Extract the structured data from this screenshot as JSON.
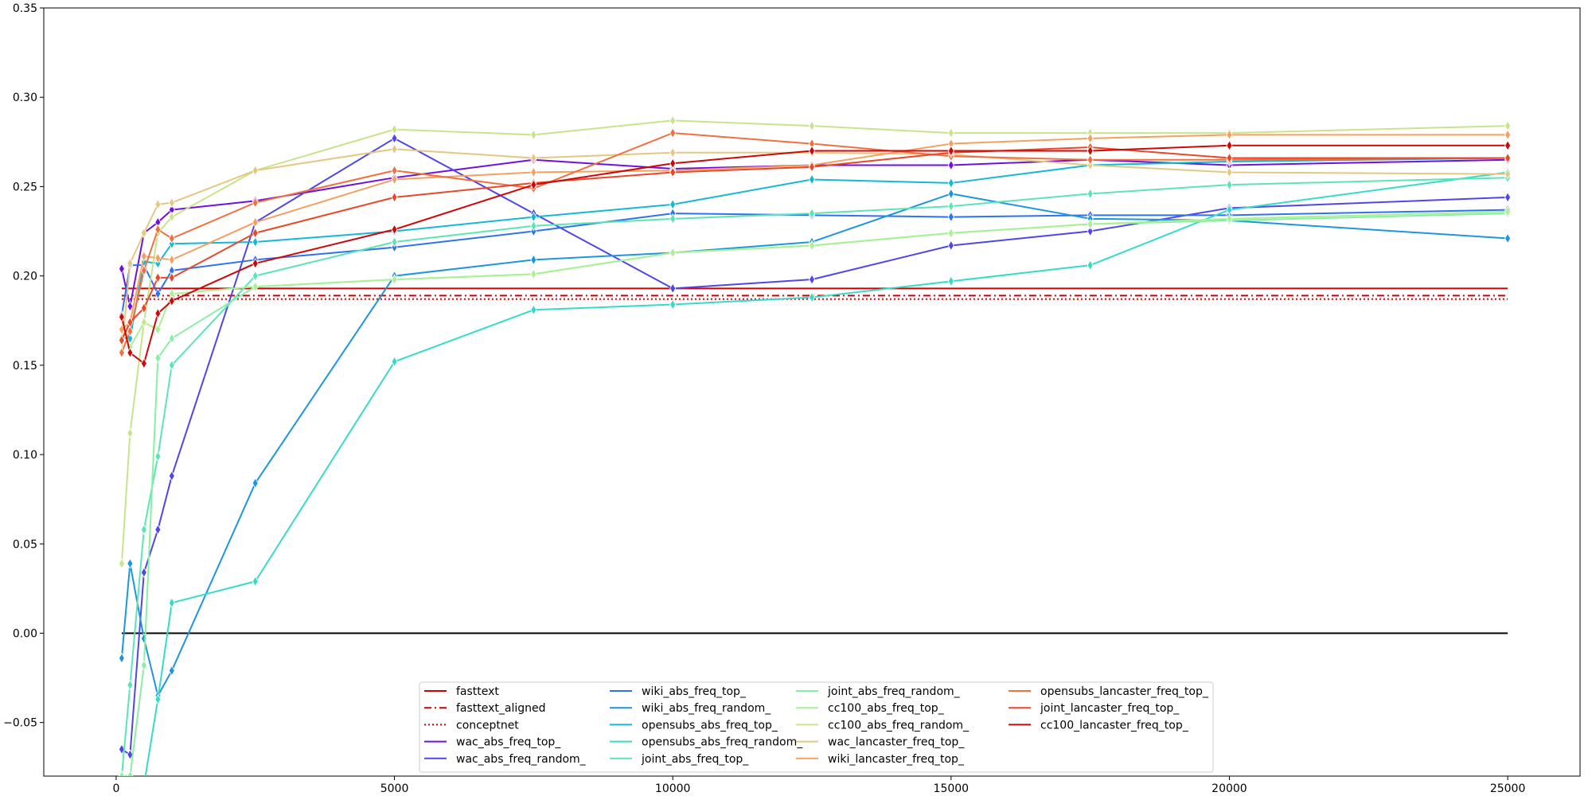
{
  "chart_data": {
    "type": "line",
    "title": "",
    "xlabel": "",
    "ylabel": "",
    "xlim": [
      -1300,
      26300
    ],
    "ylim": [
      -0.08,
      0.35
    ],
    "x_ticks": [
      {
        "value": 0,
        "label": "0"
      },
      {
        "value": 5000,
        "label": "5000"
      },
      {
        "value": 10000,
        "label": "10000"
      },
      {
        "value": 15000,
        "label": "15000"
      },
      {
        "value": 20000,
        "label": "20000"
      },
      {
        "value": 25000,
        "label": "25000"
      }
    ],
    "y_ticks": [
      {
        "value": -0.05,
        "label": "−0.05"
      },
      {
        "value": 0.0,
        "label": "0.00"
      },
      {
        "value": 0.05,
        "label": "0.05"
      },
      {
        "value": 0.1,
        "label": "0.10"
      },
      {
        "value": 0.15,
        "label": "0.15"
      },
      {
        "value": 0.2,
        "label": "0.20"
      },
      {
        "value": 0.25,
        "label": "0.25"
      },
      {
        "value": 0.3,
        "label": "0.30"
      },
      {
        "value": 0.35,
        "label": "0.35"
      }
    ],
    "grid": false,
    "legend_position": "bottom-center",
    "zero_line": {
      "y": 0.0,
      "color": "#000000"
    },
    "baselines": [
      {
        "name": "fasttext",
        "y": 0.193,
        "color": "#cc0000",
        "style": "solid"
      },
      {
        "name": "fasttext_aligned",
        "y": 0.189,
        "color": "#cc0000",
        "style": "dashdot"
      },
      {
        "name": "conceptnet",
        "y": 0.187,
        "color": "#cc0000",
        "style": "dotted"
      }
    ],
    "x": [
      100,
      250,
      500,
      750,
      1000,
      2500,
      5000,
      7500,
      10000,
      12500,
      15000,
      17500,
      20000,
      25000
    ],
    "series": [
      {
        "name": "wac_abs_freq_top_",
        "color": "#7010e0",
        "values": [
          0.204,
          0.183,
          0.224,
          0.23,
          0.237,
          0.242,
          0.255,
          0.265,
          0.26,
          0.262,
          0.262,
          0.265,
          0.262,
          0.265
        ]
      },
      {
        "name": "wac_abs_freq_random_",
        "color": "#5046e8",
        "values": [
          -0.065,
          -0.068,
          0.034,
          0.058,
          0.088,
          0.23,
          0.277,
          0.235,
          0.193,
          0.198,
          0.217,
          0.225,
          0.238,
          0.244
        ]
      },
      {
        "name": "wiki_abs_freq_top_",
        "color": "#2e72f0",
        "values": [
          0.178,
          0.206,
          0.206,
          0.19,
          0.203,
          0.209,
          0.216,
          0.225,
          0.235,
          0.234,
          0.233,
          0.234,
          0.234,
          0.237
        ]
      },
      {
        "name": "wiki_abs_freq_random_",
        "color": "#1c96dc",
        "values": [
          -0.014,
          0.039,
          -0.003,
          -0.035,
          -0.021,
          0.084,
          0.2,
          0.209,
          0.213,
          0.219,
          0.246,
          0.232,
          0.231,
          0.221
        ]
      },
      {
        "name": "opensubs_abs_freq_top_",
        "color": "#14b8d2",
        "values": [
          0.165,
          0.165,
          0.208,
          0.207,
          0.218,
          0.219,
          0.225,
          0.233,
          0.24,
          0.254,
          0.252,
          0.262,
          0.264,
          0.266
        ]
      },
      {
        "name": "opensubs_abs_freq_random_",
        "color": "#34dcc8",
        "values": [
          -0.08,
          -0.085,
          -0.085,
          -0.037,
          0.017,
          0.029,
          0.152,
          0.181,
          0.184,
          0.188,
          0.197,
          0.206,
          0.237,
          0.258
        ]
      },
      {
        "name": "joint_abs_freq_top_",
        "color": "#5ae6b4",
        "values": [
          -0.08,
          -0.029,
          0.058,
          0.099,
          0.15,
          0.2,
          0.219,
          0.228,
          0.232,
          0.235,
          0.239,
          0.246,
          0.251,
          0.255
        ]
      },
      {
        "name": "joint_abs_freq_random_",
        "color": "#88f0a4",
        "values": [
          -0.08,
          -0.08,
          -0.018,
          0.154,
          0.165,
          0.194,
          0.198,
          0.201,
          0.213,
          0.217,
          0.224,
          0.229,
          0.231,
          0.235
        ]
      },
      {
        "name": "cc100_abs_freq_top_",
        "color": "#aaf094",
        "values": [
          0.176,
          0.16,
          0.174,
          0.17,
          0.19,
          0.194,
          0.198,
          0.201,
          0.213,
          0.217,
          0.224,
          0.229,
          0.232,
          0.236
        ]
      },
      {
        "name": "cc100_abs_freq_random_",
        "color": "#c8e48a",
        "values": [
          0.039,
          0.112,
          0.174,
          0.224,
          0.233,
          0.259,
          0.282,
          0.279,
          0.287,
          0.284,
          0.28,
          0.28,
          0.28,
          0.284
        ]
      },
      {
        "name": "wac_lancaster_freq_top_",
        "color": "#e4c882",
        "values": [
          0.158,
          0.207,
          0.224,
          0.24,
          0.241,
          0.259,
          0.271,
          0.266,
          0.269,
          0.269,
          0.268,
          0.262,
          0.258,
          0.257
        ]
      },
      {
        "name": "wiki_lancaster_freq_top_",
        "color": "#f4a060",
        "values": [
          0.17,
          0.174,
          0.211,
          0.21,
          0.209,
          0.23,
          0.254,
          0.258,
          0.259,
          0.262,
          0.274,
          0.277,
          0.279,
          0.279
        ]
      },
      {
        "name": "opensubs_lancaster_freq_top_",
        "color": "#f07040",
        "values": [
          0.157,
          0.169,
          0.203,
          0.226,
          0.221,
          0.241,
          0.259,
          0.249,
          0.28,
          0.274,
          0.267,
          0.265,
          0.265,
          0.266
        ]
      },
      {
        "name": "joint_lancaster_freq_top_",
        "color": "#e84828",
        "values": [
          0.164,
          0.174,
          0.182,
          0.199,
          0.199,
          0.224,
          0.244,
          0.252,
          0.258,
          0.261,
          0.269,
          0.272,
          0.266,
          0.266
        ]
      },
      {
        "name": "cc100_lancaster_freq_top_",
        "color": "#cc0808",
        "values": [
          0.177,
          0.157,
          0.151,
          0.179,
          0.186,
          0.207,
          0.226,
          0.251,
          0.263,
          0.27,
          0.27,
          0.27,
          0.273,
          0.273
        ]
      }
    ]
  }
}
